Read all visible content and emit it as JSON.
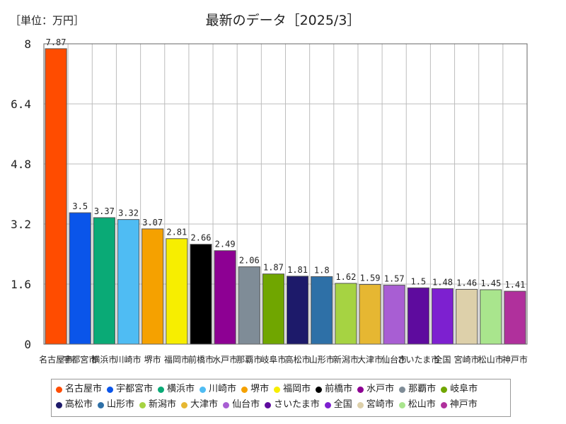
{
  "chart_data": {
    "type": "bar",
    "title": "最新のデータ［2025/3］",
    "unit_label": "［単位：万円］",
    "categories": [
      "名古屋市",
      "宇都宮市",
      "横浜市",
      "川崎市",
      "堺市",
      "福岡市",
      "前橋市",
      "水戸市",
      "那覇市",
      "岐阜市",
      "高松市",
      "山形市",
      "新潟市",
      "大津市",
      "仙台市",
      "さいたま市",
      "全国",
      "宮崎市",
      "松山市",
      "神戸市"
    ],
    "values": [
      7.87,
      3.5,
      3.37,
      3.32,
      3.07,
      2.81,
      2.66,
      2.49,
      2.06,
      1.87,
      1.81,
      1.8,
      1.62,
      1.59,
      1.57,
      1.5,
      1.48,
      1.46,
      1.45,
      1.41
    ],
    "value_labels": [
      "7.87",
      "3.5",
      "3.37",
      "3.32",
      "3.07",
      "2.81",
      "2.66",
      "2.49",
      "2.06",
      "1.87",
      "1.81",
      "1.8",
      "1.62",
      "1.59",
      "1.57",
      "1.5",
      "1.48",
      "1.46",
      "1.45",
      "1.41"
    ],
    "colors": [
      "#ff4c00",
      "#0a55ea",
      "#0aaa76",
      "#4fbcf3",
      "#f5a100",
      "#f7ee00",
      "#000000",
      "#8d0093",
      "#7f8c97",
      "#70a600",
      "#1d1a6a",
      "#2e70a7",
      "#a6d342",
      "#e6b732",
      "#a85ed3",
      "#5e0b9e",
      "#7d20d0",
      "#ddd0aa",
      "#a9e58d",
      "#b0309c"
    ],
    "ylim": [
      0,
      8
    ],
    "yticks": [
      "0",
      "1.6",
      "3.2",
      "4.8",
      "6.4",
      "8"
    ],
    "ytick_values": [
      0,
      1.6,
      3.2,
      4.8,
      6.4,
      8
    ],
    "grid": true,
    "legend_position": "bottom"
  }
}
